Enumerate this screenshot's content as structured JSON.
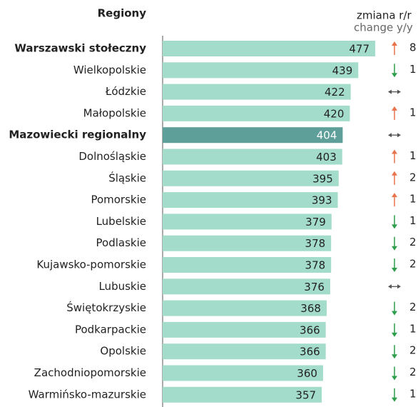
{
  "chart_data": {
    "type": "bar",
    "orientation": "horizontal",
    "category_header": "Regiony",
    "change_header": "zmiana r/r",
    "change_subheader": "change y/y",
    "categories": [
      "Warszawski stołeczny",
      "Wielkopolskie",
      "Łódzkie",
      "Małopolskie",
      "Mazowiecki regionalny",
      "Dolnośląskie",
      "Śląskie",
      "Pomorskie",
      "Lubelskie",
      "Podlaskie",
      "Kujawsko-pomorskie",
      "Lubuskie",
      "Świętokrzyskie",
      "Podkarpackie",
      "Opolskie",
      "Zachodniopomorskie",
      "Warmińsko-mazurskie"
    ],
    "values": [
      477,
      439,
      422,
      420,
      404,
      403,
      395,
      393,
      379,
      378,
      378,
      376,
      368,
      366,
      366,
      360,
      357
    ],
    "colors": [
      "#a3dccb",
      "#a3dccb",
      "#a3dccb",
      "#a3dccb",
      "#5f9f9a",
      "#a3dccb",
      "#a3dccb",
      "#a3dccb",
      "#a3dccb",
      "#a3dccb",
      "#a3dccb",
      "#a3dccb",
      "#a3dccb",
      "#a3dccb",
      "#a3dccb",
      "#a3dccb",
      "#a3dccb"
    ],
    "bold_categories": [
      "Warszawski stołeczny",
      "Mazowiecki regionalny"
    ],
    "xlim": [
      0,
      500
    ],
    "change": {
      "values": [
        8,
        -1,
        0,
        1,
        0,
        1,
        2,
        1,
        -1,
        -2,
        -2,
        0,
        -2,
        -1,
        -2,
        -2,
        -1
      ],
      "value_labels": [
        "8",
        "1",
        null,
        "1",
        null,
        "1",
        "2",
        "1",
        "1",
        "2",
        "2",
        null,
        "2",
        "1",
        "2",
        "2",
        "1"
      ],
      "up_color": "#e8734a",
      "down_color": "#2e9e4a",
      "flat_color": "#555555"
    }
  }
}
